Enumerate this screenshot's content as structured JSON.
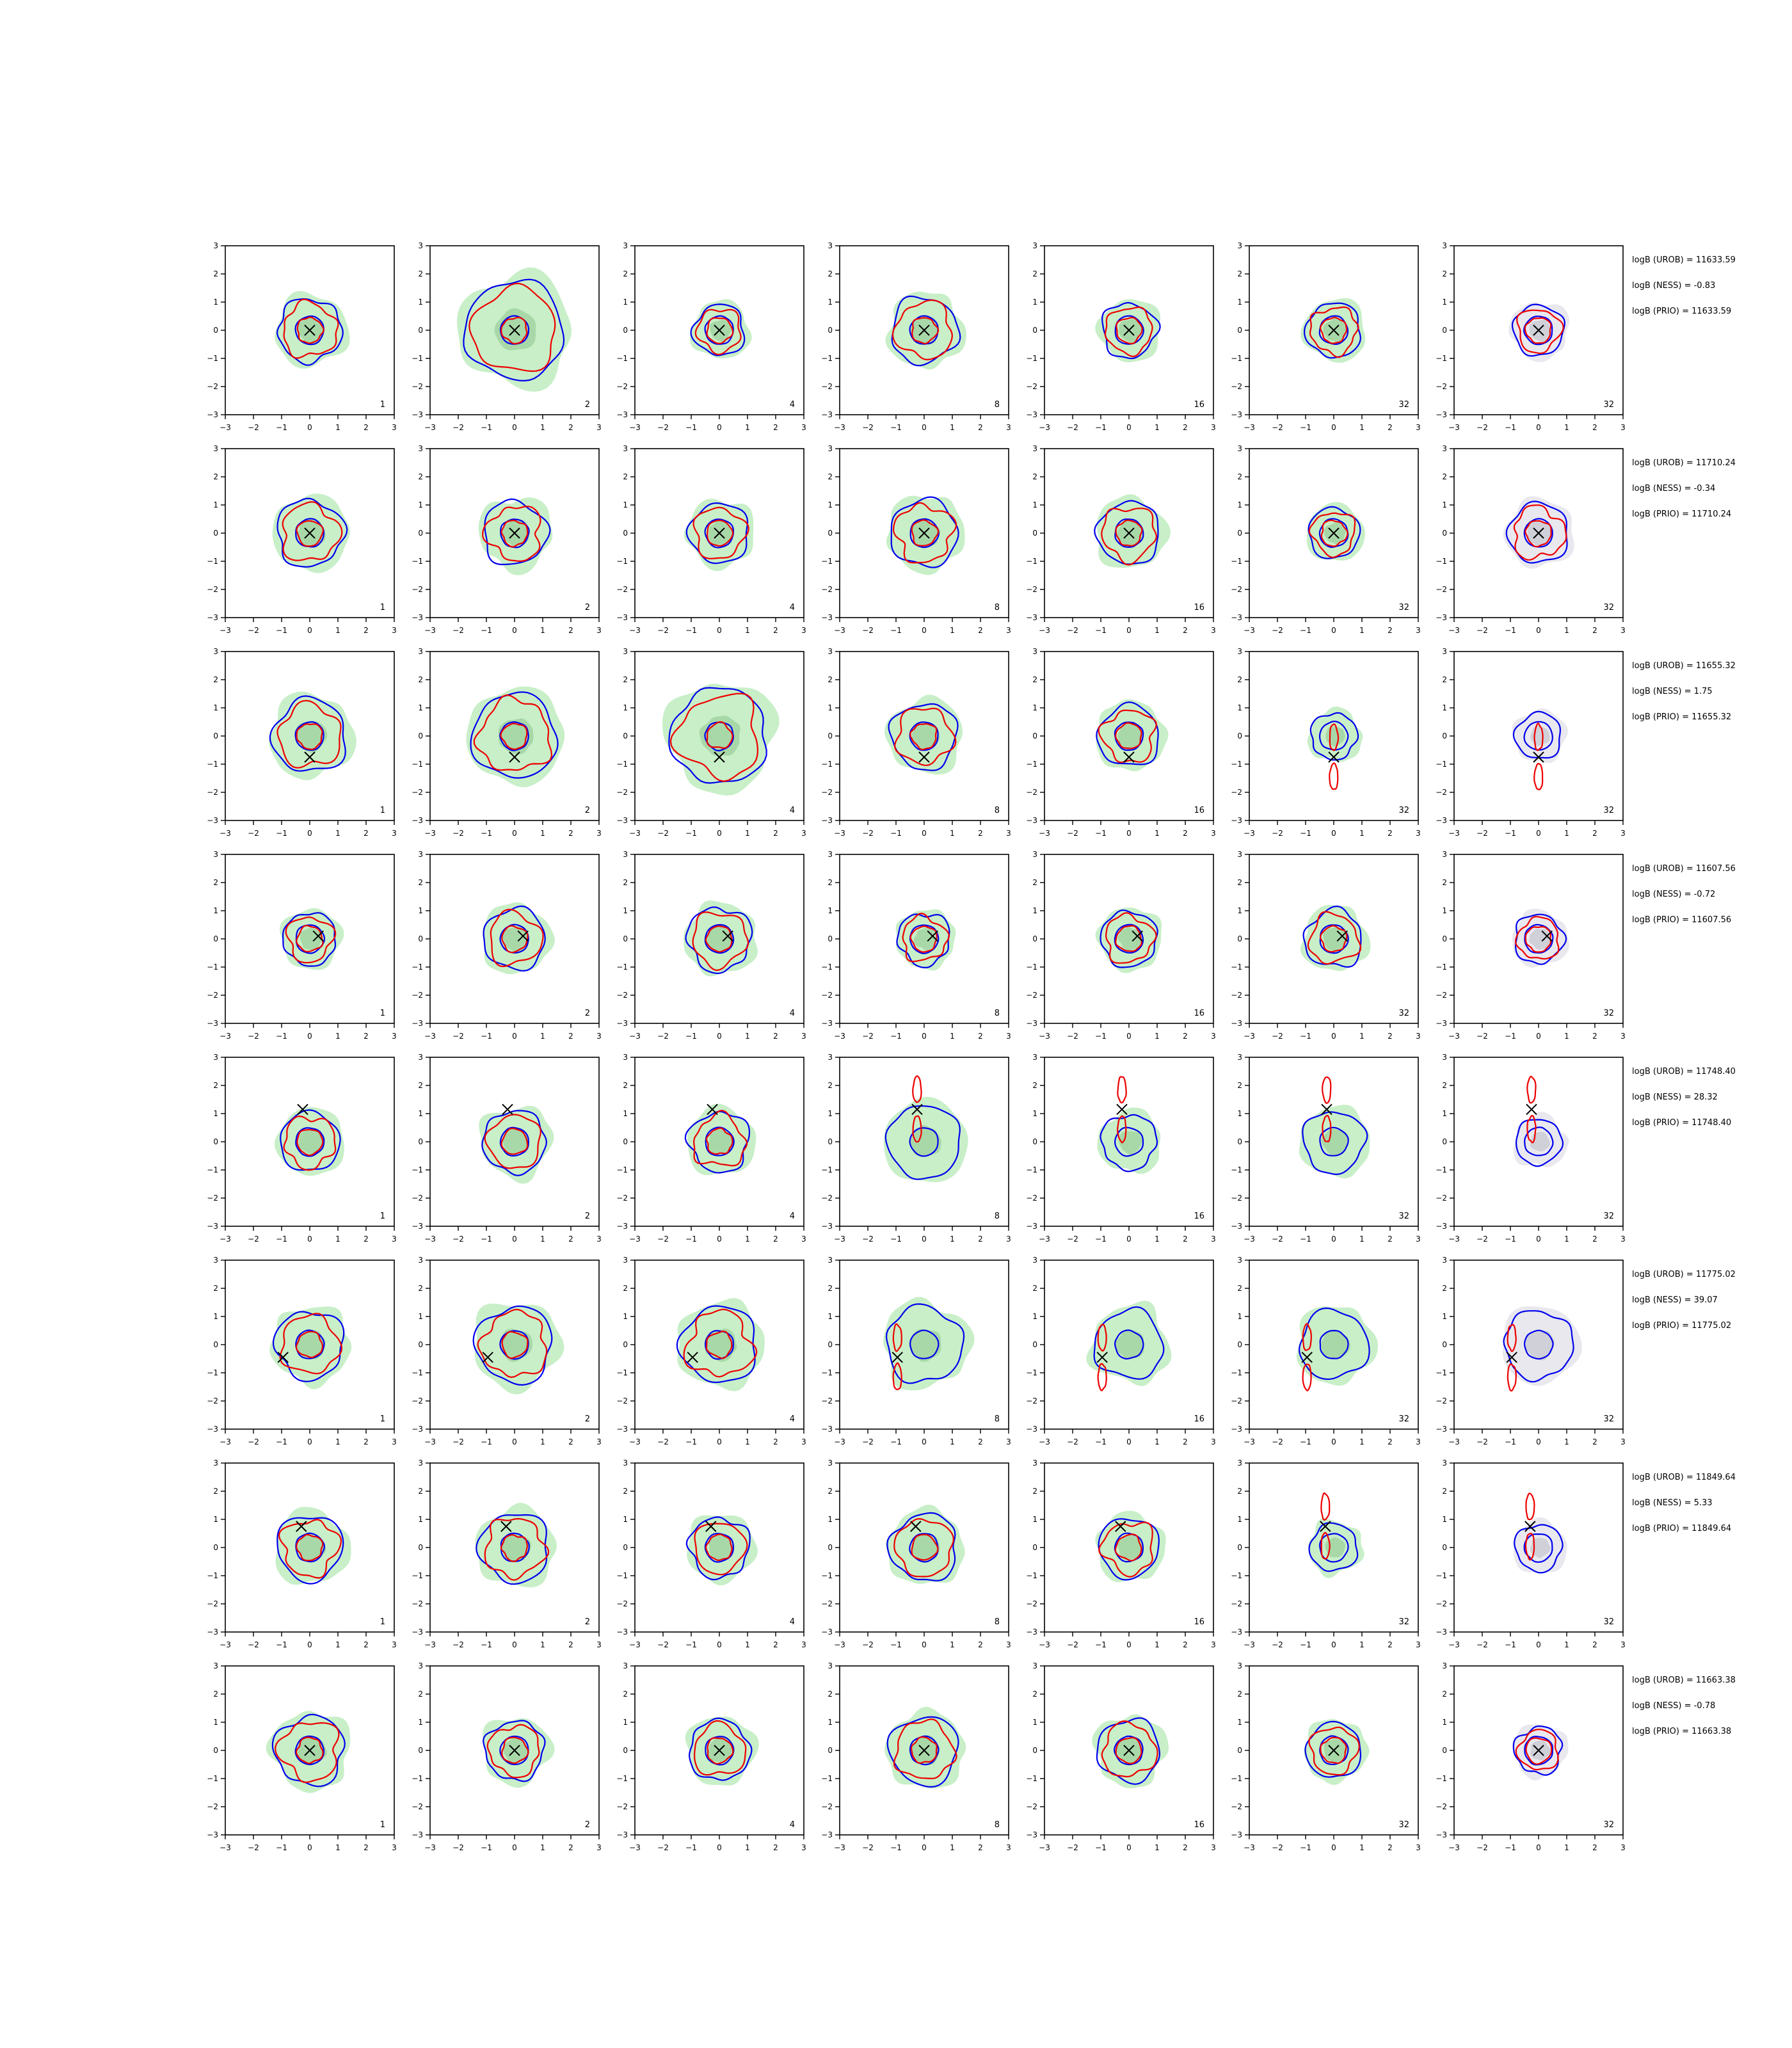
{
  "figure": {
    "grid": {
      "rows": 8,
      "cols": 7
    },
    "axes": {
      "xlim": [
        -3,
        3
      ],
      "ylim": [
        -3,
        3
      ],
      "xticks": [
        "−3",
        "−2",
        "−1",
        "0",
        "1",
        "2",
        "3"
      ],
      "yticks": [
        "−3",
        "−2",
        "−1",
        "0",
        "1",
        "2",
        "3"
      ]
    },
    "column_labels": [
      "1",
      "2",
      "4",
      "8",
      "16",
      "32",
      "32"
    ],
    "rows": [
      {
        "x_marker": [
          0,
          0
        ],
        "stats": [
          "logB (UROB) = 11633.59",
          "logB (NESS) = -0.83",
          "logB (PRIO) = 11633.59"
        ]
      },
      {
        "x_marker": [
          0,
          0
        ],
        "stats": [
          "logB (UROB) = 11710.24",
          "logB (NESS) = -0.34",
          "logB (PRIO) = 11710.24"
        ]
      },
      {
        "x_marker": [
          0,
          -0.75
        ],
        "stats": [
          "logB (UROB) = 11655.32",
          "logB (NESS) = 1.75",
          "logB (PRIO) = 11655.32"
        ]
      },
      {
        "x_marker": [
          0.3,
          0.1
        ],
        "stats": [
          "logB (UROB) = 11607.56",
          "logB (NESS) = -0.72",
          "logB (PRIO) = 11607.56"
        ]
      },
      {
        "x_marker": [
          -0.25,
          1.15
        ],
        "stats": [
          "logB (UROB) = 11748.40",
          "logB (NESS) = 28.32",
          "logB (PRIO) = 11748.40"
        ]
      },
      {
        "x_marker": [
          -0.95,
          -0.45
        ],
        "stats": [
          "logB (UROB) = 11775.02",
          "logB (NESS) = 39.07",
          "logB (PRIO) = 11775.02"
        ]
      },
      {
        "x_marker": [
          -0.3,
          0.75
        ],
        "stats": [
          "logB (UROB) = 11849.64",
          "logB (NESS) = 5.33",
          "logB (PRIO) = 11849.64"
        ]
      },
      {
        "x_marker": [
          0,
          0
        ],
        "stats": [
          "logB (UROB) = 11663.38",
          "logB (NESS) = -0.78",
          "logB (PRIO) = 11663.38"
        ]
      }
    ]
  },
  "colors": {
    "fill_light": "#c8efc8",
    "fill_dark": "#a8d8a8",
    "prior_fill_light": "#e8e8ee",
    "prior_fill_dark": "#cfd0d8",
    "blue": "#0000ee",
    "red": "#ee0000",
    "axis": "#000000"
  },
  "chart_data": {
    "type": "contour",
    "grid_rows": 8,
    "grid_cols": 7,
    "panel_labels": [
      "1",
      "2",
      "4",
      "8",
      "16",
      "32",
      "32"
    ],
    "xlim": [
      -3,
      3
    ],
    "ylim": [
      -3,
      3
    ],
    "true_parameter_markers": [
      [
        0,
        0
      ],
      [
        0,
        0
      ],
      [
        0,
        -0.75
      ],
      [
        0.3,
        0.1
      ],
      [
        -0.25,
        1.15
      ],
      [
        -0.95,
        -0.45
      ],
      [
        -0.3,
        0.75
      ],
      [
        0,
        0
      ]
    ],
    "annotations": [
      [
        "logB (UROB) = 11633.59",
        "logB (NESS) = -0.83",
        "logB (PRIO) = 11633.59"
      ],
      [
        "logB (UROB) = 11710.24",
        "logB (NESS) = -0.34",
        "logB (PRIO) = 11710.24"
      ],
      [
        "logB (UROB) = 11655.32",
        "logB (NESS) = 1.75",
        "logB (PRIO) = 11655.32"
      ],
      [
        "logB (UROB) = 11607.56",
        "logB (NESS) = -0.72",
        "logB (PRIO) = 11607.56"
      ],
      [
        "logB (UROB) = 11748.40",
        "logB (NESS) = 28.32",
        "logB (PRIO) = 11748.40"
      ],
      [
        "logB (UROB) = 11775.02",
        "logB (NESS) = 39.07",
        "logB (PRIO) = 11775.02"
      ],
      [
        "logB (UROB) = 11849.64",
        "logB (NESS) = 5.33",
        "logB (PRIO) = 11849.64"
      ],
      [
        "logB (UROB) = 11663.38",
        "logB (NESS) = -0.78",
        "logB (PRIO) = 11663.38"
      ]
    ]
  }
}
